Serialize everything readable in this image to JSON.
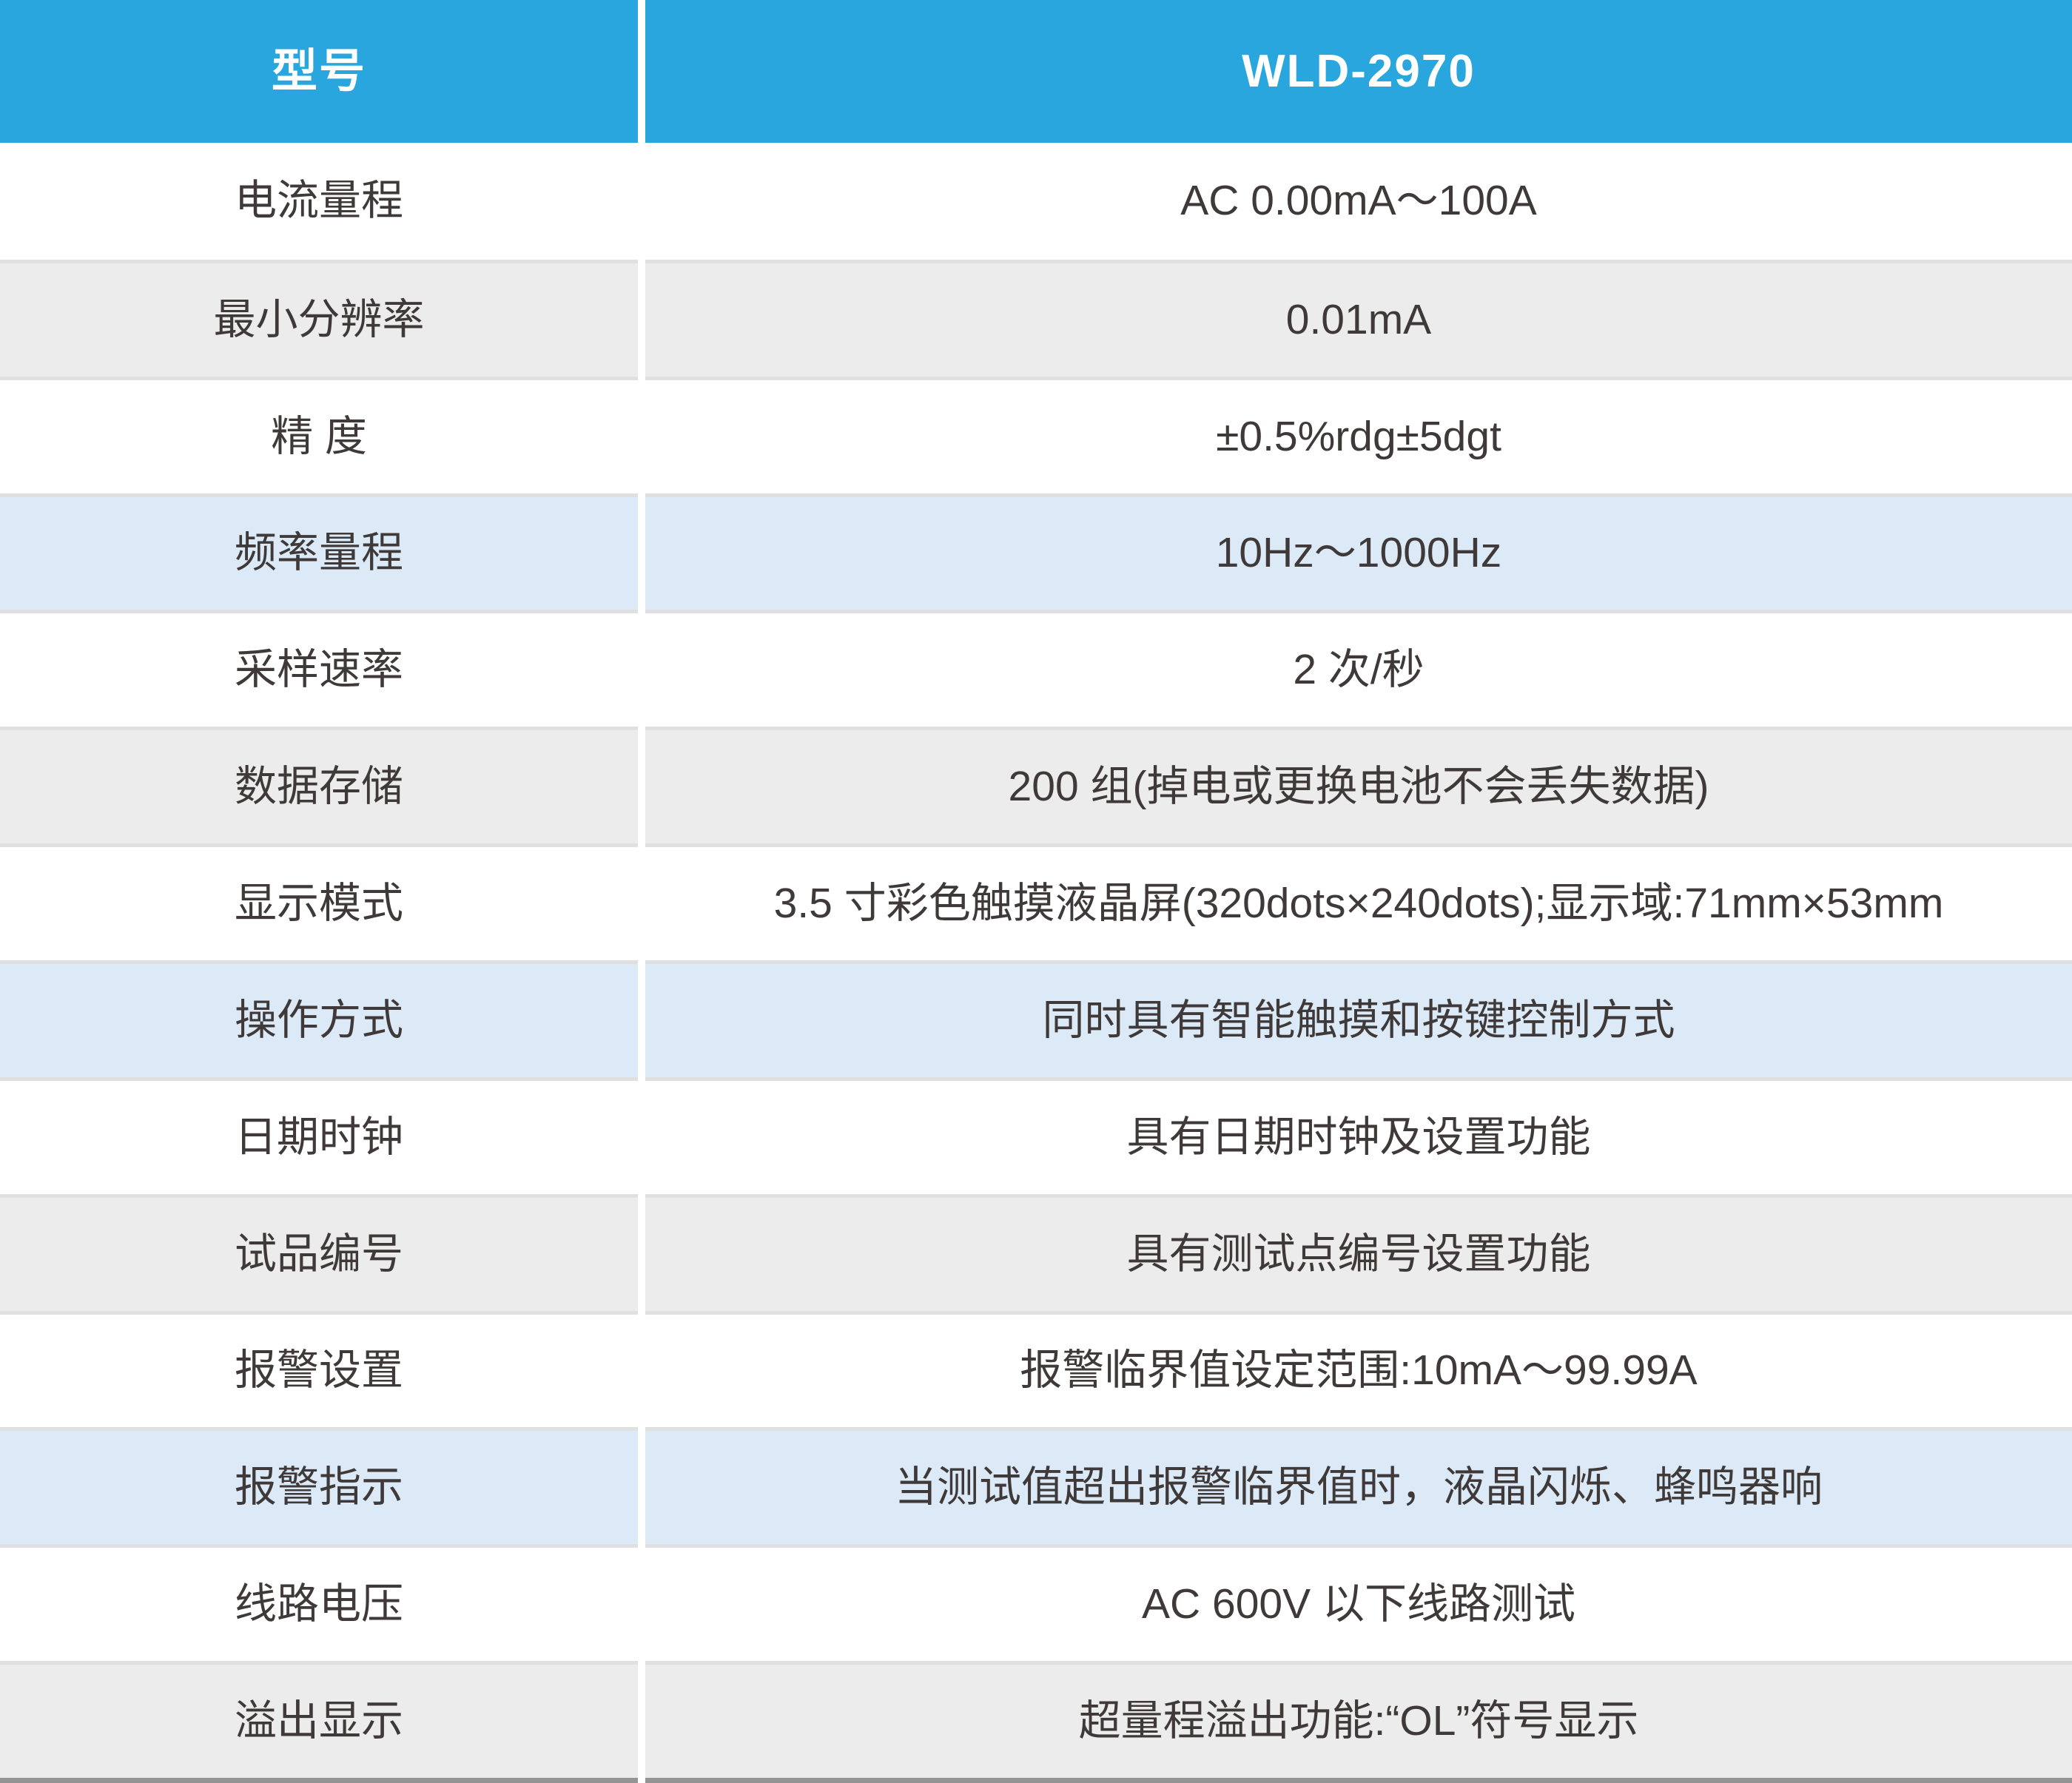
{
  "table": {
    "header": {
      "model_label": "型号",
      "model_value": "WLD-2970"
    },
    "rows": [
      {
        "label": "电流量程",
        "value": "AC 0.00mA～100A",
        "variant": "white"
      },
      {
        "label": "最小分辨率",
        "value": "0.01mA",
        "variant": "gray"
      },
      {
        "label": "精 度",
        "value": "±0.5%rdg±5dgt",
        "variant": "white"
      },
      {
        "label": "频率量程",
        "value": "10Hz～1000Hz",
        "variant": "blue"
      },
      {
        "label": "采样速率",
        "value": "2 次/秒",
        "variant": "white"
      },
      {
        "label": "数据存储",
        "value": "200 组(掉电或更换电池不会丢失数据)",
        "variant": "gray"
      },
      {
        "label": "显示模式",
        "value": "3.5 寸彩色触摸液晶屏(320dots×240dots);显示域:71mm×53mm",
        "variant": "white"
      },
      {
        "label": "操作方式",
        "value": "同时具有智能触摸和按键控制方式",
        "variant": "blue"
      },
      {
        "label": "日期时钟",
        "value": "具有日期时钟及设置功能",
        "variant": "white"
      },
      {
        "label": "试品编号",
        "value": "具有测试点编号设置功能",
        "variant": "gray"
      },
      {
        "label": "报警设置",
        "value": "报警临界值设定范围:10mA～99.99A",
        "variant": "white"
      },
      {
        "label": "报警指示",
        "value": "当测试值超出报警临界值时，液晶闪烁、蜂鸣器响",
        "variant": "blue"
      },
      {
        "label": "线路电压",
        "value": "AC 600V 以下线路测试",
        "variant": "white"
      },
      {
        "label": "溢出显示",
        "value": "超量程溢出功能:“OL”符号显示",
        "variant": "gray"
      }
    ],
    "colors": {
      "header_bg": "#2aa6df",
      "header_text": "#ffffff",
      "row_white": "#ffffff",
      "row_gray": "#ececec",
      "row_blue": "#dbeaf6",
      "separator": "#e0e0e0",
      "gutter": "#ffffff",
      "text": "#3f3a39",
      "bottom_edge": "#949494"
    }
  }
}
